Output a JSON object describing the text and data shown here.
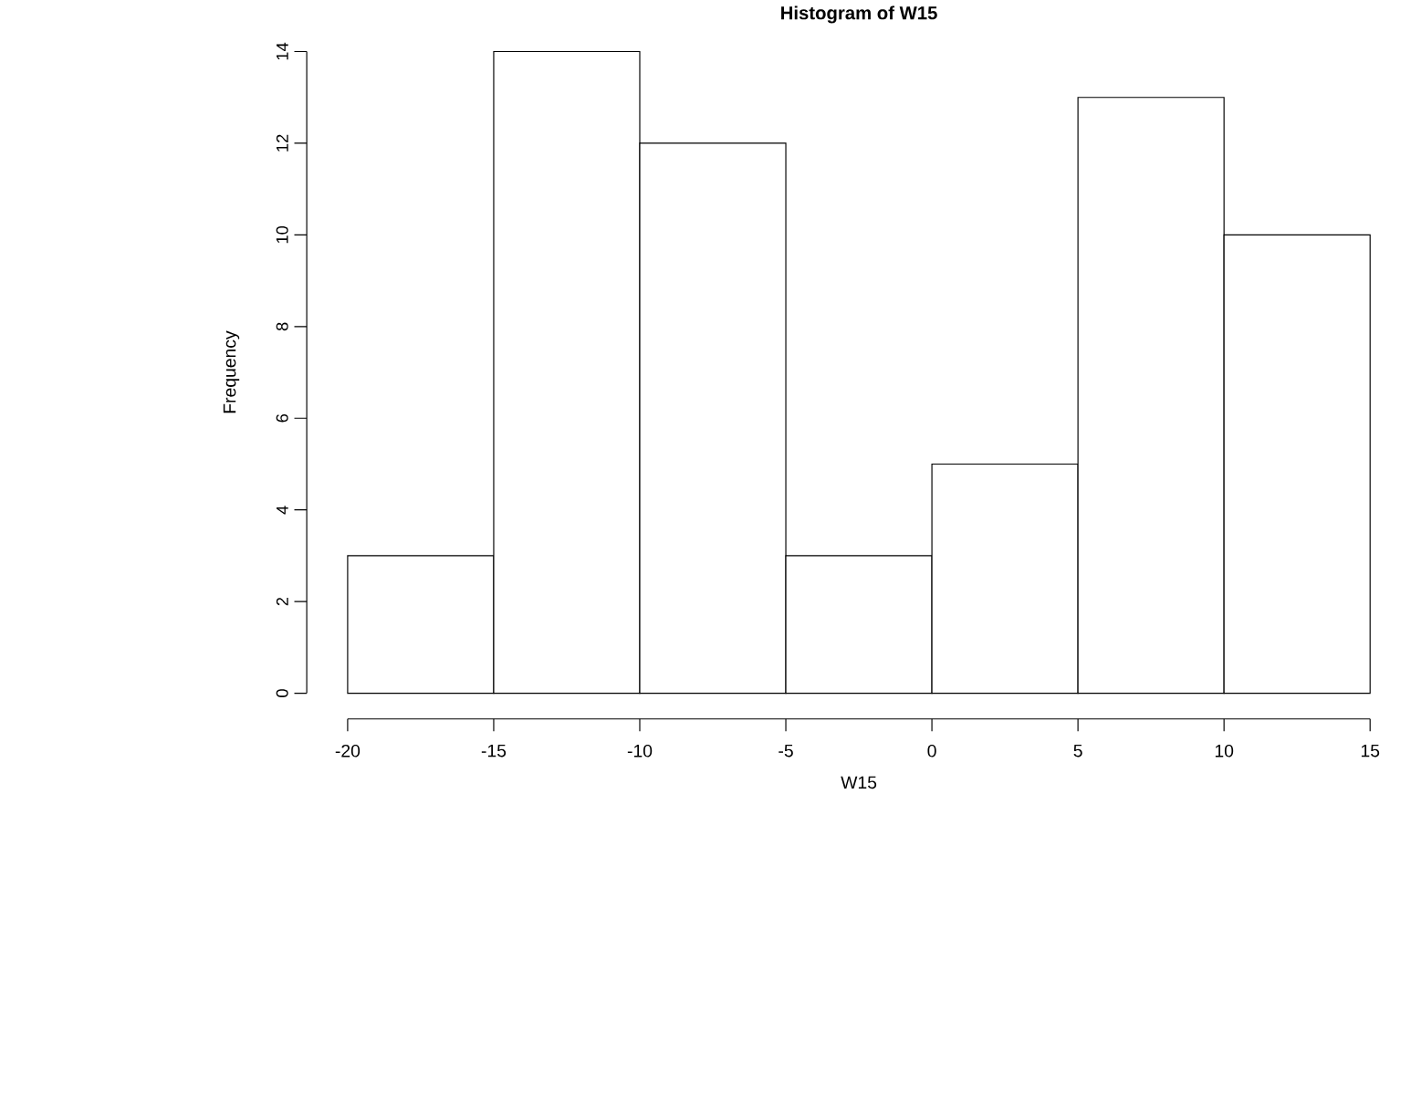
{
  "chart_data": {
    "type": "histogram",
    "title": "Histogram of W15",
    "xlabel": "W15",
    "ylabel": "Frequency",
    "bins": [
      -20,
      -15,
      -10,
      -5,
      0,
      5,
      10,
      15
    ],
    "values": [
      3,
      14,
      12,
      3,
      5,
      13,
      10
    ],
    "color": "#ffffff",
    "xlim": [
      -20,
      15
    ],
    "xticks": [
      -20,
      -15,
      -10,
      -5,
      0,
      5,
      10,
      15
    ],
    "ylim": [
      0,
      14
    ],
    "yticks": [
      0,
      2,
      4,
      6,
      8,
      10,
      12,
      14
    ]
  }
}
